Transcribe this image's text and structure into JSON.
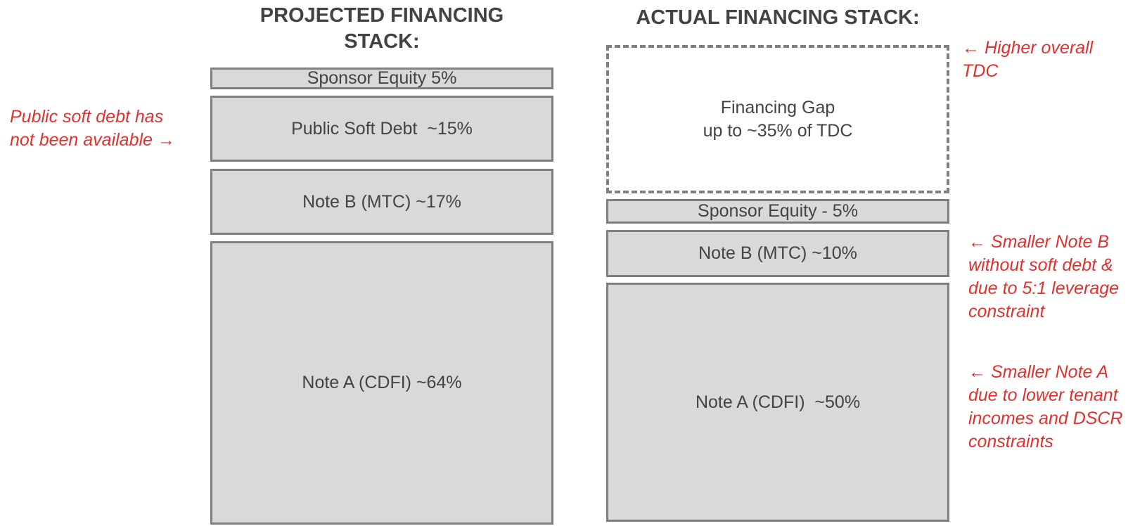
{
  "projected": {
    "title": "PROJECTED FINANCING STACK:",
    "blocks": [
      "Sponsor Equity 5%",
      "Public Soft Debt  ~15%",
      "Note B (MTC) ~17%",
      "Note A (CDFI) ~64%"
    ]
  },
  "actual": {
    "title": "ACTUAL FINANCING STACK:",
    "gap": [
      "Financing Gap",
      "up to ~35% of TDC"
    ],
    "blocks": [
      "Sponsor Equity - 5%",
      "Note B (MTC) ~10%",
      "Note A (CDFI)  ~50%"
    ]
  },
  "annotations": [
    [
      "Public soft debt has",
      "not been available →"
    ],
    [
      "← Higher overall",
      "TDC"
    ],
    [
      "← Smaller Note B",
      "without soft debt &",
      "due to 5:1 leverage",
      "constraint"
    ],
    [
      "← Smaller Note A",
      "due to lower tenant",
      "incomes and DSCR",
      "constraints"
    ]
  ]
}
